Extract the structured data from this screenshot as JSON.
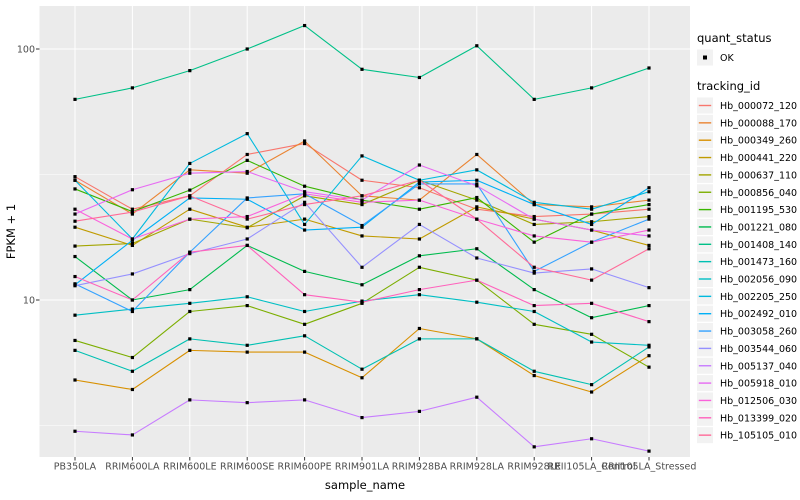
{
  "figure": {
    "bg": "#FFFFFF",
    "panel_bg": "#EBEBEB",
    "grid_color": "#FFFFFF",
    "legend_key_bg": "#F2F2F2",
    "tick_text_color": "#4D4D4D",
    "point_color": "#000000"
  },
  "legend": {
    "quant_status_title": "quant_status",
    "quant_status_value": "OK",
    "tracking_title": "tracking_id"
  },
  "chart_data": {
    "type": "line",
    "title": "",
    "xlabel": "sample_name",
    "ylabel": "FPKM + 1",
    "y_scale": "log10",
    "ylim": [
      2.4,
      148
    ],
    "grid": true,
    "legend_position": "right",
    "point_marker": "small black square on every data point (quant_status = OK)",
    "y_ticks": [
      {
        "label": "100",
        "value": 100
      },
      {
        "label": "10",
        "value": 10
      }
    ],
    "y_minor_gridlines": [
      31.623,
      3.1623
    ],
    "categories": [
      "PB350LA",
      "RRIM600LA",
      "RRIM600LE",
      "RRIM600SE",
      "RRIM600PE",
      "RRIM901LA",
      "RRIM928BA",
      "RRIM928LA",
      "RRIM928LE",
      "RRII105LA_Control",
      "RRII105LA_Stressed"
    ],
    "series": [
      {
        "name": "Hb_000072_120",
        "color": "#F8766D",
        "values": [
          31,
          23,
          26,
          38,
          42,
          30,
          28,
          23,
          21.5,
          22,
          23
        ]
      },
      {
        "name": "Hb_000088_170",
        "color": "#EA8331",
        "values": [
          30,
          22,
          33,
          32,
          43,
          26,
          25,
          38,
          24,
          23.5,
          25
        ]
      },
      {
        "name": "Hb_000349_260",
        "color": "#D89000",
        "values": [
          4.8,
          4.4,
          6.3,
          6.2,
          6.2,
          4.9,
          7.7,
          7.0,
          5.0,
          4.3,
          6.0
        ]
      },
      {
        "name": "Hb_000441_220",
        "color": "#C09B00",
        "values": [
          19.5,
          16.5,
          23,
          19.5,
          21,
          18,
          17.5,
          23.5,
          21,
          19,
          16.5
        ]
      },
      {
        "name": "Hb_000637_110",
        "color": "#A3A500",
        "values": [
          16.4,
          16.8,
          21,
          19.4,
          26,
          24,
          30,
          25,
          20,
          20.5,
          21.5
        ]
      },
      {
        "name": "Hb_000856_040",
        "color": "#7CAE00",
        "values": [
          6.9,
          5.9,
          9.0,
          9.5,
          8.0,
          9.7,
          13.5,
          12.0,
          8.0,
          7.3,
          5.4
        ]
      },
      {
        "name": "Hb_001195_530",
        "color": "#39B600",
        "values": [
          27.7,
          22.5,
          27.4,
          36,
          28.4,
          25,
          23,
          25.6,
          17,
          22,
          24
        ]
      },
      {
        "name": "Hb_001221_080",
        "color": "#00BB4E",
        "values": [
          14.9,
          10,
          11,
          16.5,
          13,
          11.5,
          15,
          16,
          11,
          8.5,
          9.5
        ]
      },
      {
        "name": "Hb_001408_140",
        "color": "#00C087",
        "values": [
          63,
          70,
          82,
          100,
          124,
          83,
          77,
          103,
          63,
          70,
          84
        ]
      },
      {
        "name": "Hb_001473_160",
        "color": "#00C0B2",
        "values": [
          6.3,
          5.2,
          7.0,
          6.6,
          7.2,
          5.3,
          7.0,
          7.0,
          5.2,
          4.6,
          6.5
        ]
      },
      {
        "name": "Hb_002056_090",
        "color": "#00BFC4",
        "values": [
          8.7,
          9.2,
          9.7,
          10.3,
          9.0,
          9.9,
          10.5,
          9.8,
          9.0,
          6.8,
          6.6
        ]
      },
      {
        "name": "Hb_002205_250",
        "color": "#00BADE",
        "values": [
          30,
          17.5,
          35,
          46,
          20,
          37.5,
          30,
          33,
          24.5,
          23,
          27
        ]
      },
      {
        "name": "Hb_002492_010",
        "color": "#00B0F6",
        "values": [
          11.5,
          17.3,
          25.5,
          25.2,
          19,
          19.5,
          29.5,
          30,
          24,
          20,
          28
        ]
      },
      {
        "name": "Hb_003058_260",
        "color": "#35A2FF",
        "values": [
          11.6,
          9.0,
          15.5,
          25.5,
          26.5,
          19.8,
          29,
          29,
          13,
          17,
          21
        ]
      },
      {
        "name": "Hb_003544_060",
        "color": "#9590FF",
        "values": [
          11.4,
          12.7,
          15.3,
          17.5,
          24.5,
          13.5,
          20,
          14.7,
          12.8,
          13.3,
          11.2
        ]
      },
      {
        "name": "Hb_005137_040",
        "color": "#C77CFF",
        "values": [
          3.0,
          2.9,
          4.0,
          3.9,
          4.0,
          3.4,
          3.6,
          4.1,
          2.6,
          2.8,
          2.5
        ]
      },
      {
        "name": "Hb_005918_010",
        "color": "#E76BF3",
        "values": [
          22,
          27.5,
          32,
          32.5,
          27,
          25,
          34.5,
          28.5,
          21,
          19,
          18
        ]
      },
      {
        "name": "Hb_012506_030",
        "color": "#FA62DB",
        "values": [
          23,
          17.5,
          21,
          21.5,
          26.5,
          24.5,
          25,
          21,
          18,
          17,
          19
        ]
      },
      {
        "name": "Hb_013399_020",
        "color": "#FF62BC",
        "values": [
          12.4,
          10,
          15.5,
          16.5,
          10.5,
          9.8,
          11,
          12,
          9.5,
          9.7,
          8.2
        ]
      },
      {
        "name": "Hb_105105_010",
        "color": "#FF6A98",
        "values": [
          20.6,
          22.4,
          26,
          21,
          24,
          26,
          30,
          21,
          13.5,
          12,
          16
        ]
      }
    ]
  }
}
